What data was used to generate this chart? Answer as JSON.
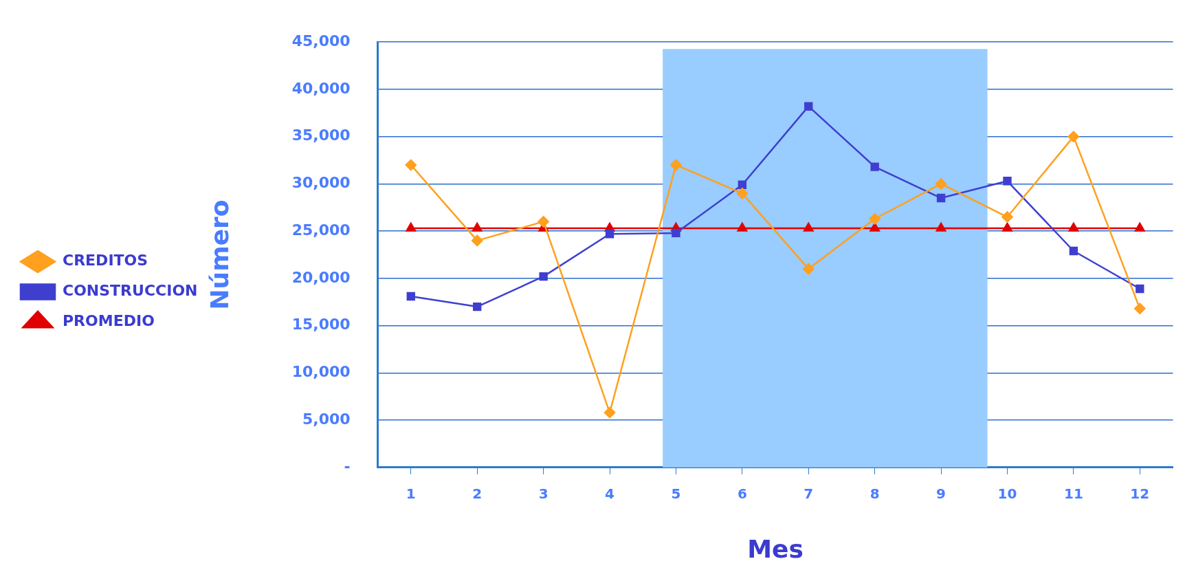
{
  "chart_data": {
    "type": "line",
    "xlabel": "Mes",
    "ylabel": "Número",
    "x": [
      1,
      2,
      3,
      4,
      5,
      6,
      7,
      8,
      9,
      10,
      11,
      12
    ],
    "xlim": [
      0.5,
      12.5
    ],
    "xticks": [
      1,
      2,
      3,
      4,
      5,
      6,
      7,
      8,
      9,
      10,
      11,
      12
    ],
    "ylim": [
      0,
      45000
    ],
    "yticks": [
      {
        "value": 0,
        "label": "-"
      },
      {
        "value": 5000,
        "label": "5,000"
      },
      {
        "value": 10000,
        "label": "10,000"
      },
      {
        "value": 15000,
        "label": "15,000"
      },
      {
        "value": 20000,
        "label": "20,000"
      },
      {
        "value": 25000,
        "label": "25,000"
      },
      {
        "value": 30000,
        "label": "30,000"
      },
      {
        "value": 35000,
        "label": "35,000"
      },
      {
        "value": 40000,
        "label": "40,000"
      },
      {
        "value": 45000,
        "label": "45,000"
      }
    ],
    "grid": "y",
    "legend": "left",
    "bands": [
      {
        "axis": "x",
        "from": 4.8,
        "to": 9.7,
        "color": "#99ccff"
      }
    ],
    "series": [
      {
        "name": "CREDITOS",
        "color": "#ffa01e",
        "marker": "diamond",
        "values": [
          32000,
          24000,
          26000,
          5800,
          32000,
          29000,
          21000,
          26300,
          30000,
          26500,
          35000,
          16800
        ]
      },
      {
        "name": "CONSTRUCCION",
        "color": "#3f3fcf",
        "marker": "square",
        "values": [
          18100,
          17000,
          20200,
          24700,
          24800,
          29900,
          38200,
          31800,
          28500,
          30300,
          22900,
          18900
        ]
      },
      {
        "name": "PROMEDIO",
        "color": "#e00000",
        "marker": "triangle",
        "values": [
          25300,
          25300,
          25300,
          25300,
          25300,
          25300,
          25300,
          25300,
          25300,
          25300,
          25300,
          25300
        ]
      }
    ]
  }
}
